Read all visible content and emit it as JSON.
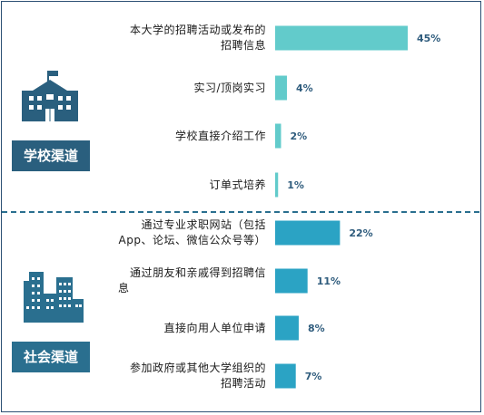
{
  "colors": {
    "school_bar": "#62cbcb",
    "social_bar": "#2ba3c4",
    "value_text": "#2f5c7d",
    "badge_school": "#2a5f7e",
    "badge_social": "#2a6f8f"
  },
  "icons": {
    "school": "school-building-icon",
    "social": "city-buildings-icon"
  },
  "chart_data": {
    "type": "bar",
    "orientation": "horizontal",
    "xlim": [
      0,
      45
    ],
    "groups": [
      {
        "name": "学校渠道",
        "items": [
          {
            "label": [
              "本大学的招聘活动或发布的",
              "招聘信息"
            ],
            "value": 45,
            "value_label": "45%"
          },
          {
            "label": [
              "实习/顶岗实习"
            ],
            "value": 4,
            "value_label": "4%"
          },
          {
            "label": [
              "学校直接介绍工作"
            ],
            "value": 2,
            "value_label": "2%"
          },
          {
            "label": [
              "订单式培养"
            ],
            "value": 1,
            "value_label": "1%"
          }
        ]
      },
      {
        "name": "社会渠道",
        "items": [
          {
            "label": [
              "通过专业求职网站（包括",
              "App、论坛、微信公众号等）"
            ],
            "value": 22,
            "value_label": "22%"
          },
          {
            "label": [
              "通过朋友和亲戚得到招聘信",
              "息"
            ],
            "value": 11,
            "value_label": "11%"
          },
          {
            "label": [
              "直接向用人单位申请"
            ],
            "value": 8,
            "value_label": "8%"
          },
          {
            "label": [
              "参加政府或其他大学组织的",
              "招聘活动"
            ],
            "value": 7,
            "value_label": "7%"
          }
        ]
      }
    ]
  }
}
